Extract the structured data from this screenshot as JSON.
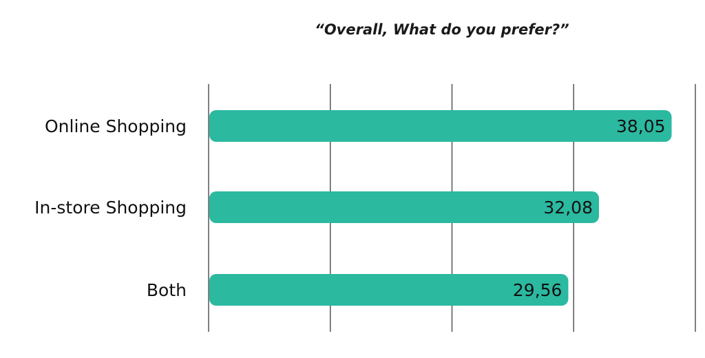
{
  "chart_data": {
    "type": "bar",
    "orientation": "horizontal",
    "title": "“Overall, What do you prefer?”",
    "categories": [
      "Online Shopping",
      "In-store Shopping",
      "Both"
    ],
    "values": [
      38.05,
      32.08,
      29.56
    ],
    "value_labels": [
      "38,05",
      "32,08",
      "29,56"
    ],
    "xlim": [
      0,
      40
    ],
    "grid": true,
    "bar_color": "#2bb9a0"
  }
}
